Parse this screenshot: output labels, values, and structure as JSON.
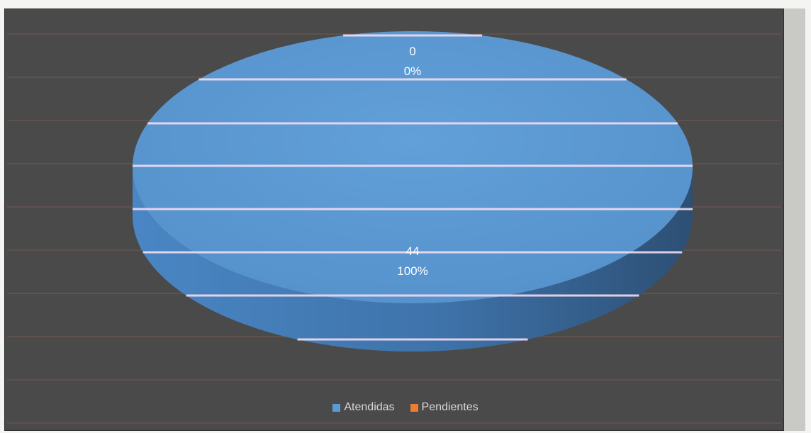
{
  "chart_data": {
    "type": "pie",
    "style": "3d",
    "title": "",
    "categories": [
      "Atendidas",
      "Pendientes"
    ],
    "values": [
      44,
      0
    ],
    "percentages": [
      "100%",
      "0%"
    ],
    "data_labels": [
      {
        "category": "Pendientes",
        "value": "0",
        "percent": "0%"
      },
      {
        "category": "Atendidas",
        "value": "44",
        "percent": "100%"
      }
    ],
    "colors": [
      "#5b9bd5",
      "#ed7d31"
    ],
    "legend": {
      "position": "bottom",
      "items": [
        {
          "label": "Atendidas",
          "color": "#5b9bd5"
        },
        {
          "label": "Pendientes",
          "color": "#ed7d31"
        }
      ]
    },
    "background": "#4a4a4a"
  }
}
